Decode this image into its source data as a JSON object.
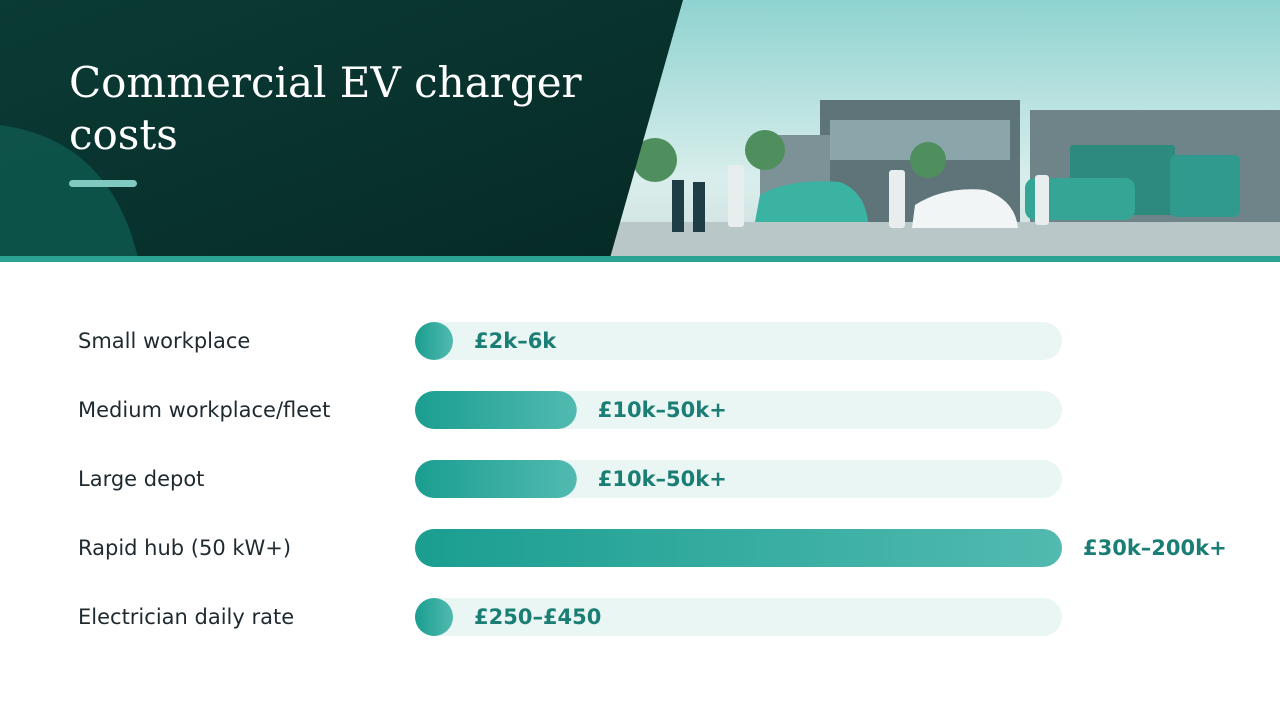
{
  "chart_data": {
    "type": "bar",
    "orientation": "horizontal",
    "title": "Commercial EV charger costs",
    "categories": [
      "Small workplace",
      "Medium workplace/fleet",
      "Large depot",
      "Rapid hub (50 kW+)",
      "Electrician daily rate"
    ],
    "values": [
      6000,
      50000,
      50000,
      200000,
      450
    ],
    "value_labels": [
      "£2k–6k",
      "£10k–50k+",
      "£10k–50k+",
      "£30k–200k+",
      "£250–£450"
    ],
    "xlim": [
      0,
      200000
    ],
    "color": "#1a9e90"
  }
}
